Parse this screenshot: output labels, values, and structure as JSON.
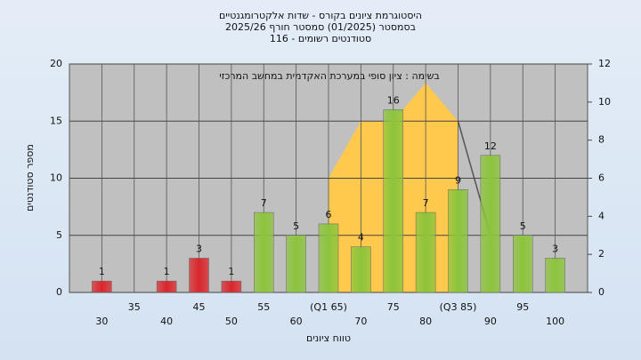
{
  "chart_data": {
    "type": "bar",
    "title_lines": [
      "היסטוגרמת ציונים בקורס - שדות אלקטרומגנטיים",
      "בסמסטר  (01/2025)  סמסטר חורף 2025/26",
      "סטודנטים רשומים - 116"
    ],
    "annotation": "בשימה : ציון סופי במערכת האקדמית במחשב המרכזי",
    "xlabel": "טווח ציונים",
    "ylabel": "מספר סטודנטים",
    "categories": [
      "30",
      "35",
      "40",
      "45",
      "50",
      "55",
      "60",
      "(Q1 65)",
      "70",
      "75",
      "80",
      "(Q3 85)",
      "90",
      "95",
      "100"
    ],
    "values": [
      1,
      null,
      1,
      3,
      1,
      7,
      5,
      6,
      4,
      16,
      7,
      9,
      12,
      5,
      3
    ],
    "colors": [
      "#d9262c",
      "#d9262c",
      "#d9262c",
      "#d9262c",
      "#d9262c",
      "#8cc43c",
      "#8cc43c",
      "#8cc43c",
      "#8cc43c",
      "#8cc43c",
      "#8cc43c",
      "#8cc43c",
      "#8cc43c",
      "#8cc43c",
      "#8cc43c"
    ],
    "area": {
      "color": "#ffc94d",
      "values": [
        null,
        null,
        null,
        null,
        null,
        null,
        null,
        6,
        9,
        9,
        11,
        9,
        null,
        null,
        null
      ]
    },
    "line": {
      "color": "#555555",
      "values": [
        null,
        null,
        null,
        null,
        null,
        null,
        null,
        null,
        null,
        null,
        null,
        9,
        3,
        null,
        null
      ]
    },
    "ylim": [
      0,
      20
    ],
    "yticks": [
      0,
      5,
      10,
      15,
      20
    ],
    "y2lim": [
      0,
      12
    ],
    "y2ticks": [
      0,
      2,
      4,
      6,
      8,
      10,
      12
    ],
    "grid": true
  }
}
